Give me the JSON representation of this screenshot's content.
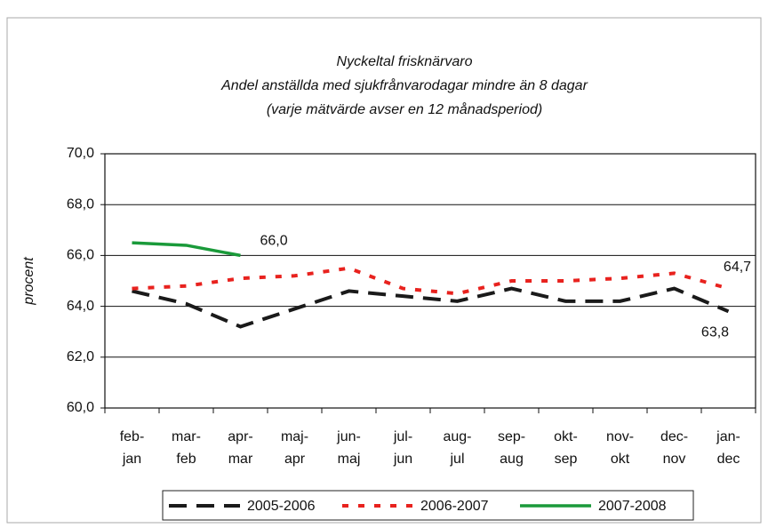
{
  "chart_data": {
    "type": "line",
    "title": "Nyckeltal frisknärvaro",
    "subtitle": "Andel anställda med sjukfrånvarodagar mindre än 8 dagar",
    "note": "(varje mätvärde avser en 12 månadsperiod)",
    "ylabel": "procent",
    "categories": [
      "feb-\njan",
      "mar-\nfeb",
      "apr-\nmar",
      "maj-\napr",
      "jun-\nmaj",
      "jul-\njun",
      "aug-\njul",
      "sep-\naug",
      "okt-\nsep",
      "nov-\nokt",
      "dec-\nnov",
      "jan-\ndec"
    ],
    "series": [
      {
        "name": "2005-2006",
        "color": "#1a1a1a",
        "style": "dashed",
        "values": [
          64.6,
          64.1,
          63.2,
          63.9,
          64.6,
          64.4,
          64.2,
          64.7,
          64.2,
          64.2,
          64.7,
          63.8
        ],
        "value_labels": [
          null,
          null,
          null,
          null,
          null,
          null,
          null,
          null,
          null,
          null,
          null,
          "63,8"
        ]
      },
      {
        "name": "2006-2007",
        "color": "#e8221e",
        "style": "dotted",
        "values": [
          64.7,
          64.8,
          65.1,
          65.2,
          65.5,
          64.7,
          64.5,
          65.0,
          65.0,
          65.1,
          65.3,
          64.7
        ],
        "value_labels": [
          null,
          null,
          null,
          null,
          null,
          null,
          null,
          null,
          null,
          null,
          null,
          "64,7"
        ]
      },
      {
        "name": "2007-2008",
        "color": "#1a9a3a",
        "style": "solid",
        "values": [
          66.5,
          66.4,
          66.0,
          null,
          null,
          null,
          null,
          null,
          null,
          null,
          null,
          null
        ],
        "value_labels": [
          null,
          null,
          "66,0",
          null,
          null,
          null,
          null,
          null,
          null,
          null,
          null,
          null
        ]
      }
    ],
    "ylim": [
      60,
      70
    ],
    "yticks": [
      {
        "value": 60,
        "label": "60,0"
      },
      {
        "value": 62,
        "label": "62,0"
      },
      {
        "value": 64,
        "label": "64,0"
      },
      {
        "value": 66,
        "label": "66,0"
      },
      {
        "value": 68,
        "label": "68,0"
      },
      {
        "value": 70,
        "label": "70,0"
      }
    ],
    "grid": true,
    "legend": "bottom"
  }
}
